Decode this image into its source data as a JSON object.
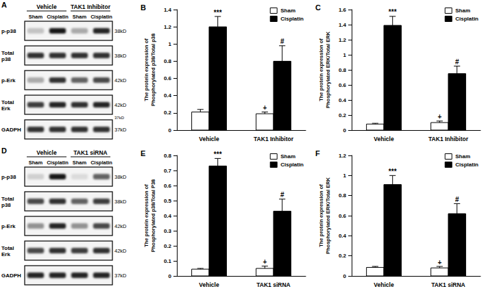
{
  "chart_data": [
    {
      "type": "bar",
      "panel": "B",
      "categories": [
        "Vehicle",
        "TAK1 Inhibitor"
      ],
      "ylabel": "The protein expression of\nPhosphorylated p38/Total p38",
      "ylim": [
        0,
        1.4
      ],
      "yticks": [
        0,
        0.2,
        0.4,
        0.6,
        0.8,
        1,
        1.2,
        1.4
      ],
      "grid": false,
      "legend": "upper right",
      "series": [
        {
          "name": "Sham",
          "color": "#ffffff",
          "values": [
            0.21,
            0.19
          ],
          "errors": [
            0.03,
            0.02
          ],
          "annotations": [
            null,
            "+"
          ]
        },
        {
          "name": "Cisplatin",
          "color": "#000000",
          "values": [
            1.2,
            0.8
          ],
          "errors": [
            0.12,
            0.18
          ],
          "annotations": [
            "***",
            "#"
          ]
        }
      ]
    },
    {
      "type": "bar",
      "panel": "C",
      "categories": [
        "Vehicle",
        "TAK1 Inhibitor"
      ],
      "ylabel": "The protein expression of\nPhosphorylated ERK/Total ERK",
      "ylim": [
        0,
        1.6
      ],
      "yticks": [
        0,
        0.2,
        0.4,
        0.6,
        0.8,
        1,
        1.2,
        1.4,
        1.6
      ],
      "grid": false,
      "legend": "upper right",
      "series": [
        {
          "name": "Sham",
          "color": "#ffffff",
          "values": [
            0.08,
            0.1
          ],
          "errors": [
            0.01,
            0.02
          ],
          "annotations": [
            null,
            "+"
          ]
        },
        {
          "name": "Cisplatin",
          "color": "#000000",
          "values": [
            1.39,
            0.75
          ],
          "errors": [
            0.12,
            0.1
          ],
          "annotations": [
            "***",
            "#"
          ]
        }
      ]
    },
    {
      "type": "bar",
      "panel": "E",
      "categories": [
        "Vehicle",
        "TAK1 siRNA"
      ],
      "ylabel": "The protein expression of\nPhosphorylated p38/Total P38",
      "ylim": [
        0,
        0.8
      ],
      "yticks": [
        0,
        0.1,
        0.2,
        0.3,
        0.4,
        0.5,
        0.6,
        0.7,
        0.8
      ],
      "grid": false,
      "legend": "upper right",
      "series": [
        {
          "name": "Sham",
          "color": "#ffffff",
          "values": [
            0.045,
            0.05
          ],
          "errors": [
            0.005,
            0.015
          ],
          "annotations": [
            null,
            "+"
          ]
        },
        {
          "name": "Cisplatin",
          "color": "#000000",
          "values": [
            0.73,
            0.43
          ],
          "errors": [
            0.05,
            0.08
          ],
          "annotations": [
            "***",
            "#"
          ]
        }
      ]
    },
    {
      "type": "bar",
      "panel": "F",
      "categories": [
        "Vehicle",
        "TAK1 siRNA"
      ],
      "ylabel": "The protein expression of\nPhosphorylated ERK/Total ERK",
      "ylim": [
        0,
        1.2
      ],
      "yticks": [
        0,
        0.2,
        0.4,
        0.6,
        0.8,
        1,
        1.2
      ],
      "grid": false,
      "legend": "upper right",
      "series": [
        {
          "name": "Sham",
          "color": "#ffffff",
          "values": [
            0.085,
            0.08
          ],
          "errors": [
            0.01,
            0.015
          ],
          "annotations": [
            null,
            "+"
          ]
        },
        {
          "name": "Cisplatin",
          "color": "#000000",
          "values": [
            0.91,
            0.62
          ],
          "errors": [
            0.09,
            0.1
          ],
          "annotations": [
            "***",
            "#"
          ]
        }
      ]
    }
  ],
  "blots": [
    {
      "panel": "A",
      "groups": [
        "Vehicle",
        "TAK1 Inhibitor"
      ],
      "lanes": [
        "Sham",
        "Cisplatin",
        "Sham",
        "Cisplatin"
      ],
      "note": "37kD",
      "rows": [
        {
          "name": "p-p38",
          "size": "38kD",
          "intensity": [
            0.2,
            0.9,
            0.3,
            0.85
          ]
        },
        {
          "name": "Total p38",
          "size": "38kD",
          "intensity": [
            0.8,
            0.8,
            0.8,
            0.8
          ]
        },
        {
          "name": "p-Erk",
          "size": "42kD",
          "intensity": [
            0.3,
            0.8,
            0.6,
            0.7
          ]
        },
        {
          "name": "Total Erk",
          "size": "42kD",
          "intensity": [
            0.75,
            0.85,
            0.8,
            0.85
          ]
        },
        {
          "name": "GADPH",
          "size": "37kD",
          "intensity": [
            0.8,
            0.8,
            0.8,
            0.8
          ]
        }
      ]
    },
    {
      "panel": "D",
      "groups": [
        "Vehicle",
        "TAK1 siRNA"
      ],
      "lanes": [
        "Sham",
        "Cisplatin",
        "Sham",
        "Cisplatin"
      ],
      "rows": [
        {
          "name": "p-p38",
          "size": "38kD",
          "intensity": [
            0.15,
            0.9,
            0.1,
            0.6
          ]
        },
        {
          "name": "Total p38",
          "size": "38kD",
          "intensity": [
            0.7,
            0.8,
            0.6,
            0.75
          ]
        },
        {
          "name": "p-Erk",
          "size": "42kD",
          "intensity": [
            0.4,
            0.85,
            0.4,
            0.7
          ]
        },
        {
          "name": "Total Erk",
          "size": "42kD",
          "intensity": [
            0.7,
            0.8,
            0.75,
            0.8
          ]
        },
        {
          "name": "GADPH",
          "size": "37kD",
          "intensity": [
            0.85,
            0.85,
            0.85,
            0.85
          ]
        }
      ]
    }
  ]
}
